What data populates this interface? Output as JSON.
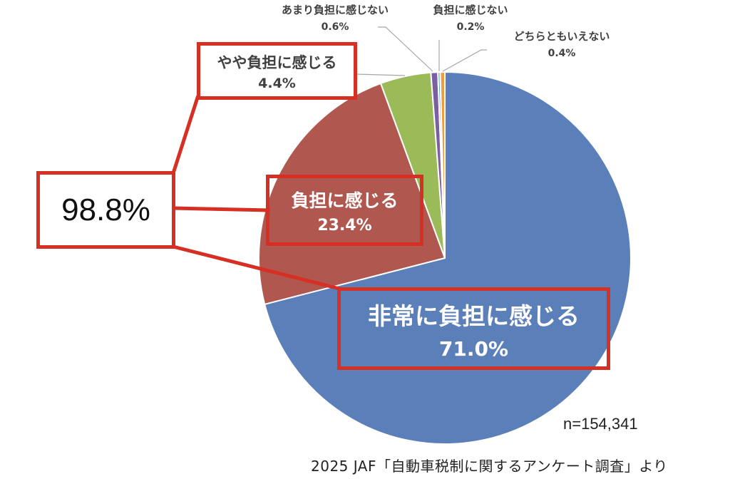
{
  "chart_data": {
    "type": "pie",
    "title": "",
    "start_angle_deg": 0,
    "direction": "clockwise",
    "slices": [
      {
        "label": "非常に負担に感じる",
        "value": 71.0,
        "display": "71.0%",
        "color": "#5b7fb8"
      },
      {
        "label": "負担に感じる",
        "value": 23.4,
        "display": "23.4%",
        "color": "#b0574f"
      },
      {
        "label": "やや負担に感じる",
        "value": 4.4,
        "display": "4.4%",
        "color": "#9bbb59"
      },
      {
        "label": "あまり負担に感じない",
        "value": 0.6,
        "display": "0.6%",
        "color": "#7a5fa2"
      },
      {
        "label": "負担に感じない",
        "value": 0.2,
        "display": "0.2%",
        "color": "#4bacc6"
      },
      {
        "label": "どちらともいえない",
        "value": 0.4,
        "display": "0.4%",
        "color": "#f29a40"
      }
    ],
    "annotations": [
      {
        "text": "98.8%",
        "meaning": "sum of 非常に負担に感じる + 負担に感じる + やや負担に感じる"
      }
    ],
    "sample_size": "n=154,341",
    "source": "2025 JAF「自動車税制に関するアンケート調査」より"
  },
  "labels": {
    "very_burden": {
      "name": "非常に負担に感じる",
      "pct": "71.0%"
    },
    "burden": {
      "name": "負担に感じる",
      "pct": "23.4%"
    },
    "somewhat_burden": {
      "name": "やや負担に感じる",
      "pct": "4.4%"
    },
    "not_much_burden": {
      "name": "あまり負担に感じない",
      "pct": "0.6%"
    },
    "no_burden": {
      "name": "負担に感じない",
      "pct": "0.2%"
    },
    "neither": {
      "name": "どちらともいえない",
      "pct": "0.4%"
    },
    "total": "98.8%"
  },
  "footer": {
    "n": "n=154,341",
    "source": "2025 JAF「自動車税制に関するアンケート調査」より"
  },
  "style": {
    "highlight_color": "#d62f24",
    "leader_color": "#a6a6a6"
  }
}
